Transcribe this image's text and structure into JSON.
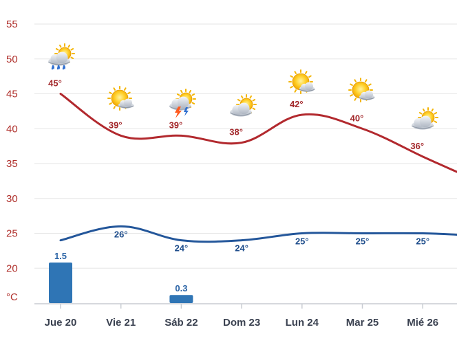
{
  "chart_data": {
    "type": "line",
    "unit_label": "°C",
    "yticks": [
      55,
      50,
      45,
      40,
      35,
      30,
      25,
      20
    ],
    "ylim": [
      15,
      55
    ],
    "categories": [
      "Jue 20",
      "Vie 21",
      "Sáb 22",
      "Dom 23",
      "Lun 24",
      "Mar 25",
      "Mié 26"
    ],
    "series": [
      {
        "values": [
          45,
          39,
          39,
          38,
          42,
          40,
          36
        ],
        "labels": [
          "45°",
          "39°",
          "39°",
          "38°",
          "42°",
          "40°",
          "36°"
        ],
        "color": "#b2292e"
      },
      {
        "values": [
          24,
          26,
          24,
          24,
          25,
          25,
          25
        ],
        "labels": [
          "",
          "26°",
          "24°",
          "24°",
          "25°",
          "25°",
          "25°"
        ],
        "color": "#23569a"
      }
    ],
    "precipitation": {
      "values": [
        1.5,
        0,
        0.3,
        0,
        0,
        0,
        0
      ],
      "labels": [
        "1.5",
        "",
        "0.3",
        "",
        "",
        "",
        ""
      ],
      "color": "#2f75b5"
    },
    "icons": [
      "cloud-sun-rain-icon",
      "sun-cloud-icon",
      "sun-storm-icon",
      "cloud-sun-icon",
      "sun-cloud-icon",
      "sun-cloud-icon",
      "cloud-sun-icon"
    ],
    "grid": true
  }
}
